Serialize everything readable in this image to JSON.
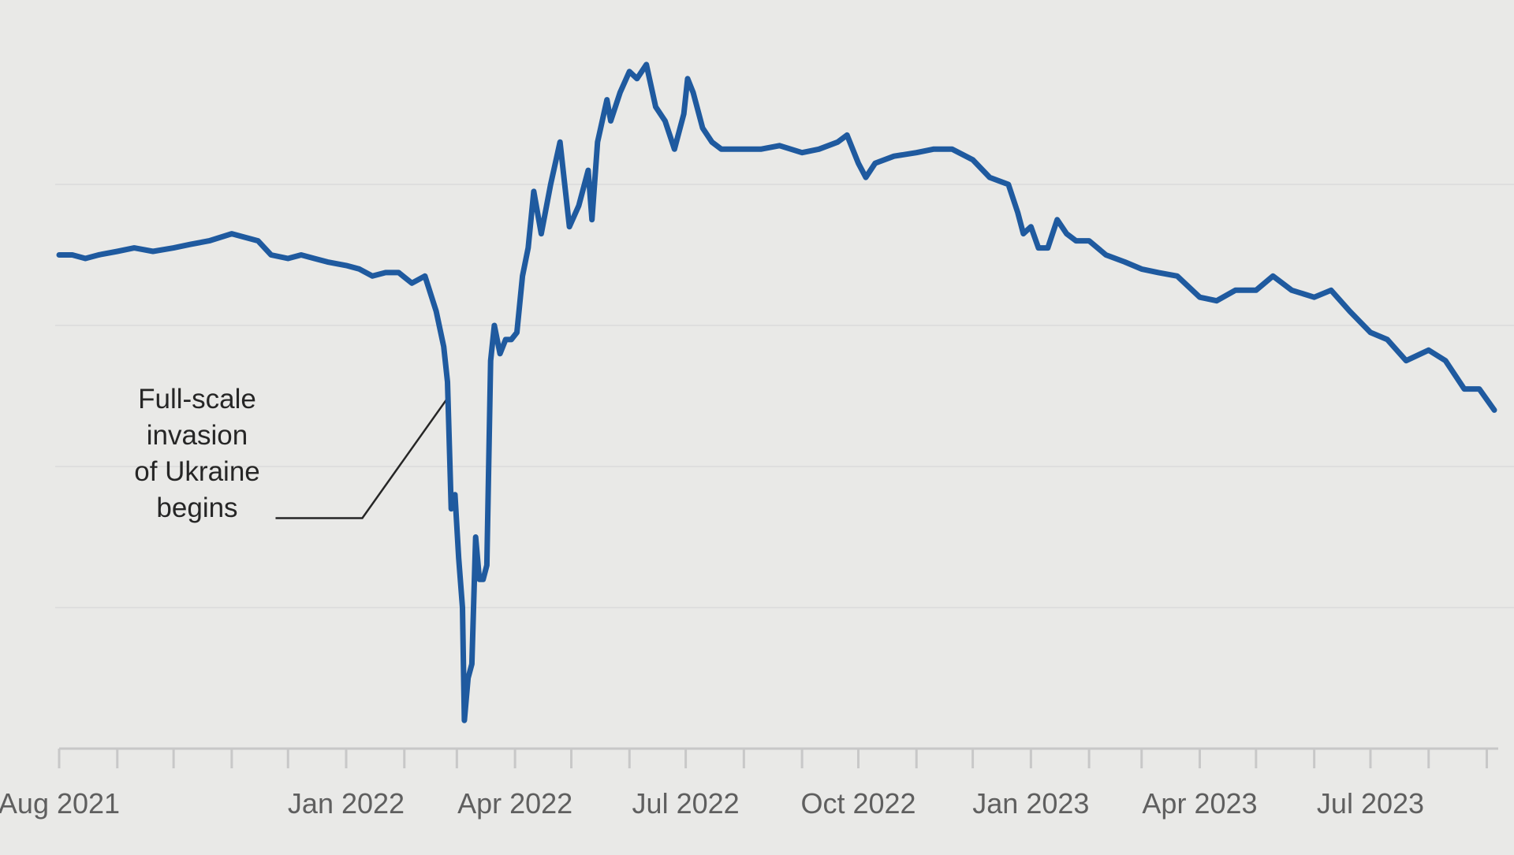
{
  "chart_data": {
    "type": "line",
    "title": "",
    "xlabel": "",
    "ylabel": "",
    "x_range": [
      "2021-08-01",
      "2023-09-05"
    ],
    "ylim": [
      0,
      10
    ],
    "grid": true,
    "colors": {
      "background": "#e9e9e7",
      "line": "#1f5a9f",
      "grid": "#dedede",
      "axis": "#c8c8c8",
      "annotation": "#262626",
      "tick_text": "#5f5f5f"
    },
    "tick_labels": [
      {
        "date": "2021-08-01",
        "label": "Aug 2021"
      },
      {
        "date": "2022-01-01",
        "label": "Jan 2022"
      },
      {
        "date": "2022-04-01",
        "label": "Apr 2022"
      },
      {
        "date": "2022-07-01",
        "label": "Jul 2022"
      },
      {
        "date": "2022-10-01",
        "label": "Oct 2022"
      },
      {
        "date": "2023-01-01",
        "label": "Jan 2023"
      },
      {
        "date": "2023-04-01",
        "label": "Apr 2023"
      },
      {
        "date": "2023-07-01",
        "label": "Jul 2023"
      }
    ],
    "annotation": {
      "lines": [
        "Full-scale",
        "invasion",
        "of Ukraine",
        "begins"
      ],
      "date": "2022-02-24"
    },
    "series": [
      {
        "x": [
          "2021-08-01",
          "2021-08-08",
          "2021-08-15",
          "2021-08-22",
          "2021-09-01",
          "2021-09-10",
          "2021-09-20",
          "2021-10-01",
          "2021-10-10",
          "2021-10-20",
          "2021-11-01",
          "2021-11-08",
          "2021-11-15",
          "2021-11-22",
          "2021-12-01",
          "2021-12-08",
          "2021-12-15",
          "2021-12-22",
          "2022-01-01",
          "2022-01-08",
          "2022-01-15",
          "2022-01-22",
          "2022-01-29",
          "2022-02-05",
          "2022-02-12",
          "2022-02-18",
          "2022-02-22",
          "2022-02-24",
          "2022-02-26",
          "2022-02-28",
          "2022-03-02",
          "2022-03-04",
          "2022-03-05",
          "2022-03-07",
          "2022-03-09",
          "2022-03-11",
          "2022-03-13",
          "2022-03-15",
          "2022-03-17",
          "2022-03-19",
          "2022-03-21",
          "2022-03-24",
          "2022-03-27",
          "2022-03-30",
          "2022-04-02",
          "2022-04-05",
          "2022-04-08",
          "2022-04-11",
          "2022-04-15",
          "2022-04-20",
          "2022-04-25",
          "2022-04-30",
          "2022-05-05",
          "2022-05-10",
          "2022-05-12",
          "2022-05-15",
          "2022-05-20",
          "2022-05-22",
          "2022-05-27",
          "2022-06-01",
          "2022-06-05",
          "2022-06-10",
          "2022-06-15",
          "2022-06-20",
          "2022-06-25",
          "2022-06-30",
          "2022-07-02",
          "2022-07-05",
          "2022-07-10",
          "2022-07-15",
          "2022-07-20",
          "2022-07-25",
          "2022-08-01",
          "2022-08-10",
          "2022-08-20",
          "2022-09-01",
          "2022-09-10",
          "2022-09-20",
          "2022-09-25",
          "2022-10-01",
          "2022-10-05",
          "2022-10-10",
          "2022-10-20",
          "2022-11-01",
          "2022-11-10",
          "2022-11-20",
          "2022-12-01",
          "2022-12-10",
          "2022-12-20",
          "2022-12-25",
          "2022-12-28",
          "2023-01-01",
          "2023-01-05",
          "2023-01-10",
          "2023-01-15",
          "2023-01-20",
          "2023-01-25",
          "2023-02-01",
          "2023-02-10",
          "2023-02-20",
          "2023-03-01",
          "2023-03-10",
          "2023-03-20",
          "2023-04-01",
          "2023-04-10",
          "2023-04-20",
          "2023-05-01",
          "2023-05-10",
          "2023-05-20",
          "2023-06-01",
          "2023-06-10",
          "2023-06-20",
          "2023-07-01",
          "2023-07-10",
          "2023-07-20",
          "2023-08-01",
          "2023-08-10",
          "2023-08-20",
          "2023-08-28",
          "2023-09-05"
        ],
        "values": [
          7.0,
          7.0,
          6.95,
          7.0,
          7.05,
          7.1,
          7.05,
          7.1,
          7.15,
          7.2,
          7.3,
          7.25,
          7.2,
          7.0,
          6.95,
          7.0,
          6.95,
          6.9,
          6.85,
          6.8,
          6.7,
          6.75,
          6.75,
          6.6,
          6.7,
          6.2,
          5.7,
          5.2,
          3.4,
          3.6,
          2.7,
          2.0,
          0.4,
          1.0,
          1.2,
          3.0,
          2.4,
          2.4,
          2.6,
          5.5,
          6.0,
          5.6,
          5.8,
          5.8,
          5.9,
          6.7,
          7.1,
          7.9,
          7.3,
          8.0,
          8.6,
          7.4,
          7.7,
          8.2,
          7.5,
          8.6,
          9.2,
          8.9,
          9.3,
          9.6,
          9.5,
          9.7,
          9.1,
          8.9,
          8.5,
          9.0,
          9.5,
          9.3,
          8.8,
          8.6,
          8.5,
          8.5,
          8.5,
          8.5,
          8.55,
          8.45,
          8.5,
          8.6,
          8.7,
          8.3,
          8.1,
          8.3,
          8.4,
          8.45,
          8.5,
          8.5,
          8.35,
          8.1,
          8.0,
          7.6,
          7.3,
          7.4,
          7.1,
          7.1,
          7.5,
          7.3,
          7.2,
          7.2,
          7.0,
          6.9,
          6.8,
          6.75,
          6.7,
          6.4,
          6.35,
          6.5,
          6.5,
          6.7,
          6.5,
          6.4,
          6.5,
          6.2,
          5.9,
          5.8,
          5.5,
          5.65,
          5.5,
          5.1,
          5.1,
          4.8
        ]
      }
    ]
  }
}
